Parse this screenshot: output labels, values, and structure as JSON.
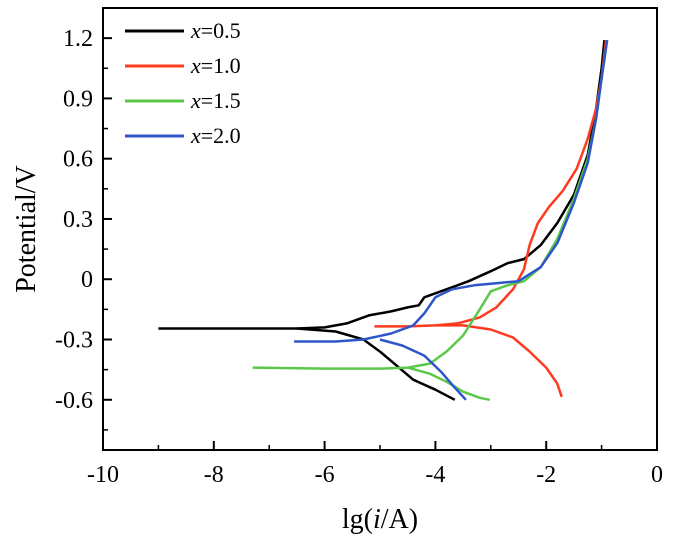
{
  "chart_data": {
    "type": "line",
    "xlabel": {
      "prefix": "lg(",
      "var": "i",
      "suffix": "/A)"
    },
    "ylabel": "Potential/V",
    "xlim": [
      -10,
      0
    ],
    "ylim": [
      -0.85,
      1.35
    ],
    "x_ticks": [
      "-10",
      "-8",
      "-6",
      "-4",
      "-2",
      "0"
    ],
    "x_tick_values": [
      -10,
      -8,
      -6,
      -4,
      -2,
      0
    ],
    "y_ticks": [
      "1.2",
      "0.9",
      "0.6",
      "0.3",
      "0",
      "-0.3",
      "-0.6"
    ],
    "y_tick_values": [
      1.2,
      0.9,
      0.6,
      0.3,
      0,
      -0.3,
      -0.6
    ],
    "grid": false,
    "legend_position": "top-left",
    "series": [
      {
        "name": "x=0.5",
        "var": "x",
        "value": "=0.5",
        "color": "#000000",
        "points": [
          [
            -9.0,
            -0.245
          ],
          [
            -6.5,
            -0.245
          ],
          [
            -6.0,
            -0.24
          ],
          [
            -5.6,
            -0.22
          ],
          [
            -5.2,
            -0.18
          ],
          [
            -4.8,
            -0.16
          ],
          [
            -4.5,
            -0.14
          ],
          [
            -4.3,
            -0.13
          ],
          [
            -4.2,
            -0.09
          ],
          [
            -4.0,
            -0.07
          ],
          [
            -3.7,
            -0.04
          ],
          [
            -3.4,
            -0.01
          ],
          [
            -3.0,
            0.04
          ],
          [
            -2.7,
            0.08
          ],
          [
            -2.4,
            0.1
          ],
          [
            -2.1,
            0.17
          ],
          [
            -1.8,
            0.28
          ],
          [
            -1.5,
            0.42
          ],
          [
            -1.25,
            0.62
          ],
          [
            -1.1,
            0.85
          ],
          [
            -1.0,
            1.05
          ],
          [
            -0.95,
            1.19
          ]
        ],
        "cathodic": [
          [
            -6.5,
            -0.245
          ],
          [
            -5.8,
            -0.26
          ],
          [
            -5.3,
            -0.3
          ],
          [
            -5.0,
            -0.36
          ],
          [
            -4.7,
            -0.43
          ],
          [
            -4.4,
            -0.5
          ],
          [
            -4.0,
            -0.55
          ],
          [
            -3.65,
            -0.6
          ]
        ]
      },
      {
        "name": "x=1.0",
        "var": "x",
        "value": "=1.0",
        "color": "#ff3b1f",
        "points": [
          [
            -5.1,
            -0.235
          ],
          [
            -4.5,
            -0.235
          ],
          [
            -4.0,
            -0.23
          ],
          [
            -3.6,
            -0.22
          ],
          [
            -3.2,
            -0.19
          ],
          [
            -2.9,
            -0.14
          ],
          [
            -2.6,
            -0.05
          ],
          [
            -2.4,
            0.05
          ],
          [
            -2.3,
            0.17
          ],
          [
            -2.15,
            0.28
          ],
          [
            -1.95,
            0.36
          ],
          [
            -1.7,
            0.44
          ],
          [
            -1.45,
            0.55
          ],
          [
            -1.25,
            0.7
          ],
          [
            -1.1,
            0.85
          ],
          [
            -1.0,
            1.0
          ],
          [
            -0.92,
            1.19
          ]
        ],
        "cathodic": [
          [
            -4.0,
            -0.23
          ],
          [
            -3.5,
            -0.23
          ],
          [
            -3.0,
            -0.25
          ],
          [
            -2.6,
            -0.29
          ],
          [
            -2.3,
            -0.36
          ],
          [
            -2.0,
            -0.44
          ],
          [
            -1.8,
            -0.52
          ],
          [
            -1.72,
            -0.585
          ]
        ]
      },
      {
        "name": "x=1.5",
        "var": "x",
        "value": "=1.5",
        "color": "#5bc84a",
        "points": [
          [
            -7.3,
            -0.44
          ],
          [
            -6.0,
            -0.445
          ],
          [
            -5.0,
            -0.445
          ],
          [
            -4.5,
            -0.44
          ],
          [
            -4.1,
            -0.42
          ],
          [
            -3.8,
            -0.36
          ],
          [
            -3.5,
            -0.28
          ],
          [
            -3.2,
            -0.15
          ],
          [
            -3.0,
            -0.06
          ],
          [
            -2.7,
            -0.03
          ],
          [
            -2.4,
            -0.01
          ],
          [
            -2.1,
            0.06
          ],
          [
            -1.8,
            0.2
          ],
          [
            -1.5,
            0.4
          ],
          [
            -1.25,
            0.6
          ],
          [
            -1.1,
            0.8
          ],
          [
            -1.0,
            1.0
          ],
          [
            -0.9,
            1.19
          ]
        ],
        "cathodic": [
          [
            -4.5,
            -0.44
          ],
          [
            -4.1,
            -0.47
          ],
          [
            -3.8,
            -0.51
          ],
          [
            -3.5,
            -0.56
          ],
          [
            -3.2,
            -0.59
          ],
          [
            -3.02,
            -0.6
          ]
        ]
      },
      {
        "name": "x=2.0",
        "var": "x",
        "value": "=2.0",
        "color": "#2f56c8",
        "points": [
          [
            -6.55,
            -0.31
          ],
          [
            -5.8,
            -0.31
          ],
          [
            -5.3,
            -0.3
          ],
          [
            -4.8,
            -0.27
          ],
          [
            -4.4,
            -0.23
          ],
          [
            -4.2,
            -0.17
          ],
          [
            -4.0,
            -0.09
          ],
          [
            -3.7,
            -0.05
          ],
          [
            -3.3,
            -0.03
          ],
          [
            -2.9,
            -0.02
          ],
          [
            -2.5,
            -0.01
          ],
          [
            -2.1,
            0.06
          ],
          [
            -1.8,
            0.18
          ],
          [
            -1.5,
            0.38
          ],
          [
            -1.25,
            0.58
          ],
          [
            -1.1,
            0.8
          ],
          [
            -1.0,
            1.0
          ],
          [
            -0.9,
            1.19
          ]
        ],
        "cathodic": [
          [
            -5.0,
            -0.3
          ],
          [
            -4.6,
            -0.33
          ],
          [
            -4.2,
            -0.38
          ],
          [
            -3.9,
            -0.46
          ],
          [
            -3.65,
            -0.54
          ],
          [
            -3.45,
            -0.6
          ]
        ]
      }
    ]
  }
}
